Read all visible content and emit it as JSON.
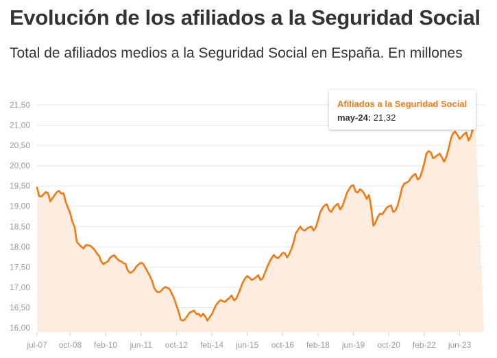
{
  "chart_data": {
    "type": "area",
    "title": "Evolución de los afiliados a la Seguridad Social",
    "subtitle": "Total de afiliados medios a la Seguridad Social en España. En millones",
    "ylim": [
      15.9,
      21.6
    ],
    "yticks": [
      "16,00",
      "16,50",
      "17,00",
      "17,50",
      "18,00",
      "18,50",
      "19,00",
      "19,50",
      "20,00",
      "20,50",
      "21,00",
      "21,50"
    ],
    "ytick_values": [
      16.0,
      16.5,
      17.0,
      17.5,
      18.0,
      18.5,
      19.0,
      19.5,
      20.0,
      20.5,
      21.0,
      21.5
    ],
    "xticks": [
      "jul-07",
      "oct-08",
      "feb-10",
      "jun-11",
      "oct-12",
      "feb-14",
      "jun-15",
      "oct-16",
      "feb-18",
      "jun-19",
      "oct-20",
      "feb-22",
      "jun-23"
    ],
    "xtick_positions": [
      "2007-07",
      "2008-10",
      "2010-02",
      "2011-06",
      "2012-10",
      "2014-02",
      "2015-06",
      "2016-10",
      "2018-02",
      "2019-06",
      "2020-10",
      "2022-02",
      "2023-06"
    ],
    "grid": true,
    "line_color": "#f07a12",
    "area_color": "#fde8d8",
    "series": [
      {
        "name": "Afiliados a la Seguridad Social",
        "x_start": "2007-07",
        "x_end": "2024-05",
        "values": [
          19.46,
          19.25,
          19.24,
          19.3,
          19.35,
          19.32,
          19.12,
          19.2,
          19.28,
          19.35,
          19.38,
          19.31,
          19.32,
          19.1,
          18.96,
          18.83,
          18.62,
          18.48,
          18.12,
          18.06,
          18.0,
          17.96,
          18.04,
          18.04,
          18.03,
          17.98,
          17.93,
          17.84,
          17.78,
          17.64,
          17.57,
          17.61,
          17.64,
          17.73,
          17.77,
          17.79,
          17.72,
          17.66,
          17.64,
          17.6,
          17.58,
          17.42,
          17.36,
          17.38,
          17.44,
          17.52,
          17.57,
          17.61,
          17.58,
          17.48,
          17.38,
          17.28,
          17.16,
          16.98,
          16.9,
          16.88,
          16.91,
          16.97,
          17.01,
          16.99,
          16.95,
          16.84,
          16.72,
          16.56,
          16.39,
          16.2,
          16.18,
          16.22,
          16.3,
          16.38,
          16.4,
          16.43,
          16.34,
          16.35,
          16.28,
          16.35,
          16.29,
          16.18,
          16.26,
          16.34,
          16.46,
          16.57,
          16.64,
          16.69,
          16.66,
          16.64,
          16.7,
          16.74,
          16.8,
          16.68,
          16.72,
          16.84,
          16.98,
          17.12,
          17.22,
          17.28,
          17.24,
          17.18,
          17.21,
          17.25,
          17.3,
          17.18,
          17.22,
          17.36,
          17.5,
          17.62,
          17.72,
          17.8,
          17.74,
          17.72,
          17.78,
          17.85,
          17.84,
          17.74,
          17.82,
          17.95,
          18.12,
          18.34,
          18.42,
          18.5,
          18.42,
          18.4,
          18.45,
          18.48,
          18.5,
          18.4,
          18.48,
          18.65,
          18.85,
          18.96,
          19.02,
          19.05,
          18.9,
          18.86,
          18.96,
          19.02,
          19.06,
          18.92,
          19.0,
          19.16,
          19.32,
          19.42,
          19.5,
          19.52,
          19.36,
          19.34,
          19.42,
          19.38,
          19.3,
          19.18,
          19.28,
          18.98,
          18.52,
          18.6,
          18.74,
          18.82,
          18.8,
          18.88,
          18.96,
          19.0,
          19.02,
          18.86,
          18.9,
          19.02,
          19.22,
          19.46,
          19.56,
          19.58,
          19.62,
          19.7,
          19.76,
          19.8,
          19.66,
          19.7,
          19.86,
          20.06,
          20.3,
          20.36,
          20.33,
          20.18,
          20.22,
          20.26,
          20.3,
          20.2,
          20.1,
          20.22,
          20.42,
          20.66,
          20.8,
          20.84,
          20.76,
          20.66,
          20.72,
          20.78,
          20.82,
          20.62,
          20.72,
          20.92,
          21.32
        ]
      }
    ],
    "tooltip": {
      "series": "Afiliados a la Seguridad Social",
      "date": "may-24:",
      "value": "21,32"
    }
  }
}
